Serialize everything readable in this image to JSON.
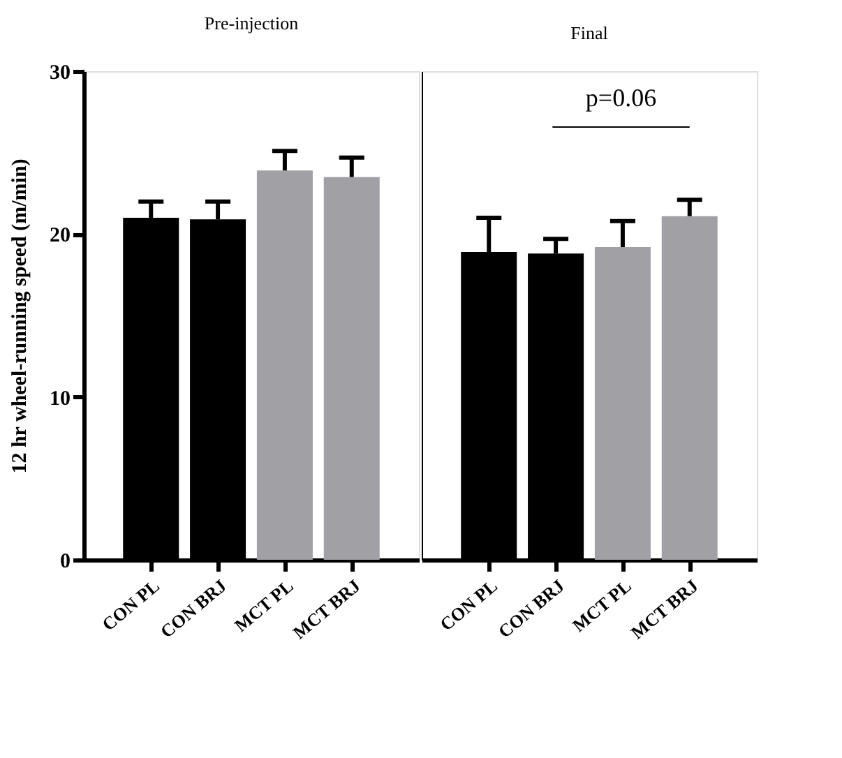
{
  "chart_data": [
    {
      "type": "bar",
      "title": "Pre-injection",
      "ylabel": "12 hr wheel-running speed (m/min)",
      "categories": [
        "CON PL",
        "CON BRJ",
        "MCT PL",
        "MCT BRJ"
      ],
      "values": [
        21.0,
        20.9,
        23.9,
        23.5
      ],
      "errors": [
        [
          21.0,
          22.0
        ],
        [
          20.9,
          22.0
        ],
        [
          23.9,
          25.1
        ],
        [
          23.5,
          24.7
        ]
      ],
      "colors": [
        "#000000",
        "#000000",
        "#a0a0a5",
        "#a0a0a5"
      ],
      "ylim": [
        0,
        30
      ],
      "yticks": [
        0,
        10,
        20,
        30
      ],
      "grid": false
    },
    {
      "type": "bar",
      "title": "Final",
      "categories": [
        "CON PL",
        "CON BRJ",
        "MCT PL",
        "MCT BRJ"
      ],
      "values": [
        18.9,
        18.8,
        19.2,
        21.1
      ],
      "errors": [
        [
          18.9,
          21.0
        ],
        [
          18.8,
          19.7
        ],
        [
          19.2,
          20.8
        ],
        [
          21.1,
          22.1
        ]
      ],
      "colors": [
        "#000000",
        "#000000",
        "#a0a0a5",
        "#a0a0a5"
      ],
      "ylim": [
        0,
        30
      ],
      "yticks": [
        0,
        10,
        20,
        30
      ],
      "grid": false,
      "tick_labels": "x",
      "annotations": [
        "p=0.06"
      ]
    }
  ]
}
